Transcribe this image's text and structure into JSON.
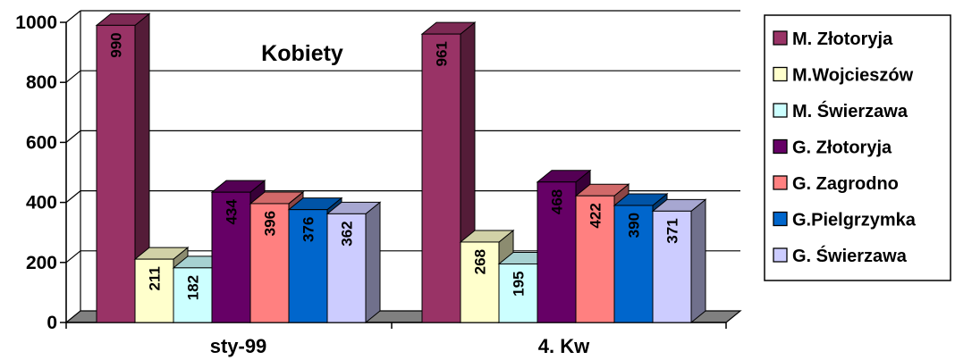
{
  "chart_data": {
    "type": "bar",
    "title": "Kobiety",
    "categories": [
      "sty-99",
      "4. Kw"
    ],
    "ylim": [
      0,
      1000
    ],
    "yticks": [
      0,
      200,
      400,
      600,
      800,
      1000
    ],
    "grid": true,
    "legend_position": "right",
    "series": [
      {
        "name": "M. Złotoryja",
        "values": [
          990,
          961
        ],
        "color": "#993366"
      },
      {
        "name": "M.Wojcieszów",
        "values": [
          211,
          268
        ],
        "color": "#FFFFCC"
      },
      {
        "name": "M. Świerzawa",
        "values": [
          182,
          195
        ],
        "color": "#CCFFFF"
      },
      {
        "name": "G. Złotoryja",
        "values": [
          434,
          468
        ],
        "color": "#660066"
      },
      {
        "name": "G. Zagrodno",
        "values": [
          396,
          422
        ],
        "color": "#FF8080"
      },
      {
        "name": "G.Pielgrzymka",
        "values": [
          376,
          390
        ],
        "color": "#0066CC"
      },
      {
        "name": "G. Świerzawa",
        "values": [
          362,
          371
        ],
        "color": "#CCCCFF"
      }
    ]
  }
}
